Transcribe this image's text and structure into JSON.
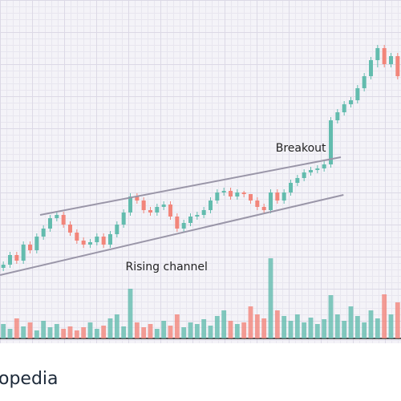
{
  "chart_data": {
    "type": "candlestick",
    "xlim": [
      -0.5,
      59.5
    ],
    "ylim": [
      0,
      305
    ],
    "volume_lim": [
      0,
      100
    ],
    "up_color": "#63bcae",
    "down_color": "#f2857a",
    "open": [
      11,
      15,
      27,
      20,
      40,
      33,
      50,
      60,
      73,
      77,
      65,
      55,
      45,
      40,
      43,
      50,
      40,
      53,
      65,
      80,
      100,
      95,
      83,
      80,
      87,
      90,
      75,
      60,
      67,
      75,
      77,
      83,
      95,
      105,
      107,
      100,
      105,
      103,
      95,
      87,
      83,
      105,
      95,
      105,
      117,
      123,
      130,
      133,
      135,
      140,
      195,
      205,
      215,
      220,
      235,
      250,
      270,
      285,
      265,
      275
    ],
    "high": [
      19,
      31,
      31,
      44,
      44,
      54,
      64,
      77,
      81,
      81,
      69,
      59,
      49,
      47,
      54,
      54,
      57,
      69,
      84,
      104,
      104,
      99,
      87,
      91,
      94,
      94,
      79,
      71,
      79,
      81,
      87,
      99,
      109,
      111,
      111,
      109,
      107,
      103,
      99,
      91,
      109,
      109,
      109,
      121,
      127,
      134,
      137,
      139,
      144,
      199,
      209,
      219,
      224,
      239,
      254,
      274,
      289,
      289,
      279,
      279
    ],
    "low": [
      7,
      11,
      16,
      16,
      29,
      29,
      46,
      56,
      69,
      61,
      51,
      41,
      36,
      36,
      39,
      36,
      36,
      49,
      61,
      76,
      91,
      79,
      76,
      76,
      83,
      71,
      56,
      56,
      63,
      71,
      73,
      79,
      91,
      101,
      96,
      96,
      99,
      91,
      83,
      79,
      79,
      91,
      91,
      101,
      113,
      119,
      126,
      129,
      131,
      136,
      191,
      201,
      211,
      216,
      231,
      246,
      261,
      261,
      261,
      246
    ],
    "close": [
      15,
      27,
      20,
      40,
      33,
      50,
      60,
      73,
      77,
      65,
      55,
      45,
      40,
      43,
      50,
      40,
      53,
      65,
      80,
      100,
      95,
      83,
      80,
      87,
      90,
      75,
      60,
      67,
      75,
      77,
      83,
      95,
      105,
      107,
      100,
      105,
      103,
      95,
      87,
      83,
      105,
      95,
      105,
      117,
      123,
      130,
      133,
      135,
      140,
      195,
      205,
      215,
      220,
      235,
      250,
      270,
      285,
      265,
      275,
      250
    ],
    "volume": [
      18,
      12,
      25,
      15,
      20,
      10,
      22,
      14,
      18,
      12,
      15,
      10,
      14,
      20,
      12,
      16,
      25,
      30,
      15,
      62,
      20,
      14,
      18,
      12,
      22,
      16,
      30,
      14,
      20,
      18,
      24,
      16,
      28,
      35,
      22,
      18,
      20,
      40,
      30,
      25,
      100,
      35,
      28,
      22,
      30,
      20,
      26,
      18,
      24,
      54,
      30,
      22,
      40,
      28,
      20,
      35,
      25,
      55,
      30,
      45
    ],
    "annotations": [
      {
        "text": "Breakout",
        "x": 49,
        "y": 160
      },
      {
        "text": "Rising channel",
        "x": 19,
        "y": 12
      }
    ],
    "trendlines": [
      {
        "x": [
          5.5,
          50.5
        ],
        "y": [
          77,
          149
        ]
      },
      {
        "x": [
          -0.5,
          50.9
        ],
        "y": [
          2,
          102
        ]
      }
    ]
  },
  "footer": {
    "logo": "opedia"
  }
}
